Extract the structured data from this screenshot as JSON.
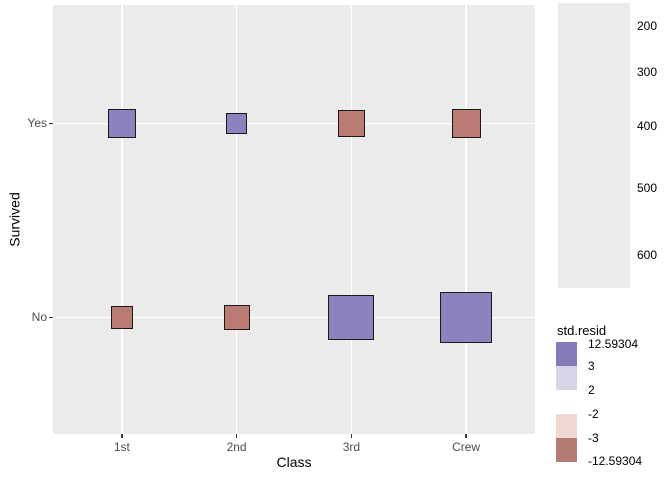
{
  "figure": {
    "background": "#FFFFFF"
  },
  "panel": {
    "background": "#EBEBEB",
    "gridline_color": "#FFFFFF"
  },
  "axes": {
    "x": {
      "title": "Class",
      "tick_labels": [
        "1st",
        "2nd",
        "3rd",
        "Crew"
      ]
    },
    "y": {
      "title": "Survived",
      "tick_labels": [
        "Yes",
        "No"
      ]
    }
  },
  "legends": {
    "size": {
      "values": [
        "200",
        "300",
        "400",
        "500",
        "600"
      ]
    },
    "color": {
      "title": "std.resid",
      "break_labels": [
        "12.59304",
        "3",
        "2",
        "-2",
        "-3",
        "-12.59304"
      ],
      "segment_colors": [
        "#837CB9",
        "#D7D3E9",
        "#FFFFFF",
        "#EFD8D4",
        "#B47B73"
      ]
    }
  },
  "colors": {
    "positive_fill": "#8B83BD",
    "negative_fill": "#B97B72",
    "square_border": "#1A1A1A",
    "tick_text": "#4D4D4D",
    "axis_text": "#000000"
  },
  "chart_data": {
    "type": "scatter",
    "subtype": "categorical sized-square plot (survival by passenger class, mosaic-style)",
    "title": "",
    "xlabel": "Class",
    "ylabel": "Survived",
    "x_categories": [
      "1st",
      "2nd",
      "3rd",
      "Crew"
    ],
    "y_categories": [
      "Yes",
      "No"
    ],
    "size_encoding": "square area proportional to count n (side_px = 2*sqrt(n)), keyed by size legend 200-600",
    "color_encoding": "standardized residual: positive = purple, negative = red; breaks at 12.59304, 3, 2, -2, -3, -12.59304",
    "points": [
      {
        "x": "1st",
        "y": "Yes",
        "n": 203,
        "resid": "positive"
      },
      {
        "x": "2nd",
        "y": "Yes",
        "n": 118,
        "resid": "positive"
      },
      {
        "x": "3rd",
        "y": "Yes",
        "n": 178,
        "resid": "negative"
      },
      {
        "x": "Crew",
        "y": "Yes",
        "n": 212,
        "resid": "negative"
      },
      {
        "x": "1st",
        "y": "No",
        "n": 122,
        "resid": "negative"
      },
      {
        "x": "2nd",
        "y": "No",
        "n": 167,
        "resid": "negative"
      },
      {
        "x": "3rd",
        "y": "No",
        "n": 528,
        "resid": "positive"
      },
      {
        "x": "Crew",
        "y": "No",
        "n": 673,
        "resid": "positive"
      }
    ],
    "size_legend_values": [
      200,
      300,
      400,
      500,
      600
    ],
    "color_legend_breaks": [
      12.59304,
      3,
      2,
      -2,
      -3,
      -12.59304
    ],
    "grid": "major gridlines only, white on grey panel",
    "legend_position": "right"
  }
}
